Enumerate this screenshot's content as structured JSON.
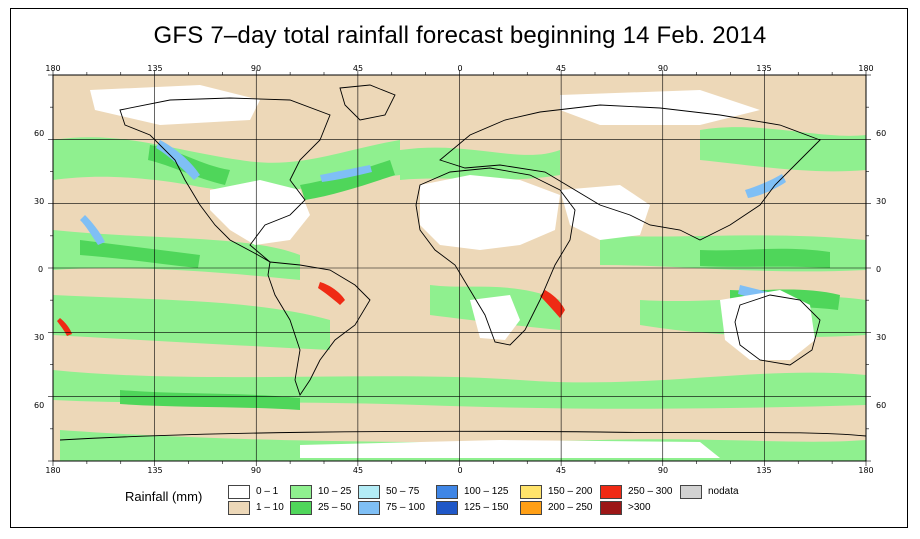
{
  "title": "GFS 7–day total rainfall forecast beginning 14 Feb. 2014",
  "lon_ticks_top": [
    "180",
    "135",
    "90",
    "45",
    "0",
    "45",
    "90",
    "135",
    "180"
  ],
  "lon_ticks_bottom": [
    "180",
    "135",
    "90",
    "45",
    "0",
    "45",
    "90",
    "135",
    "180"
  ],
  "lat_ticks_left": [
    "60",
    "30",
    "0",
    "30",
    "60"
  ],
  "lat_ticks_right": [
    "60",
    "30",
    "0",
    "30",
    "60"
  ],
  "legend": {
    "title": "Rainfall (mm)",
    "items": [
      {
        "label": "0 – 1",
        "color": "#ffffff"
      },
      {
        "label": "1 – 10",
        "color": "#edd8b8"
      },
      {
        "label": "10 – 25",
        "color": "#8ff08f"
      },
      {
        "label": "25 – 50",
        "color": "#4fd65a"
      },
      {
        "label": "50 – 75",
        "color": "#b3ecf6"
      },
      {
        "label": "75 – 100",
        "color": "#7fbff5"
      },
      {
        "label": "100 – 125",
        "color": "#3f86e6"
      },
      {
        "label": "125 – 150",
        "color": "#1f57c7"
      },
      {
        "label": "150 – 200",
        "color": "#ffe36b"
      },
      {
        "label": "200 – 250",
        "color": "#ff9f15"
      },
      {
        "label": "250 – 300",
        "color": "#ef2a14"
      },
      {
        "label": ">300",
        "color": "#9c1616"
      },
      {
        "label": "nodata",
        "color": "#d2d2d2"
      }
    ]
  },
  "colors": {
    "no_rain": "#ffffff",
    "light": "#edd8b8",
    "moderate": "#8ff08f",
    "heavy": "#4fd65a",
    "very_heavy": "#7fbff5",
    "extreme": "#ef2a14",
    "grid": "#000000",
    "land_outline": "#000000"
  }
}
